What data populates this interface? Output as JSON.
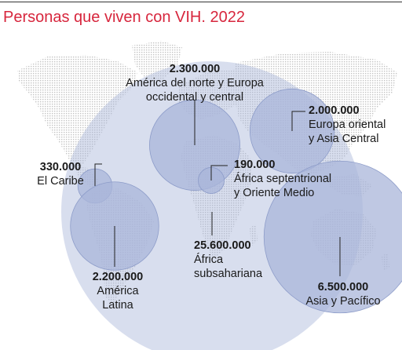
{
  "chart_data": {
    "type": "bubble-map",
    "title": "Personas que viven con VIH. 2022",
    "regions": [
      {
        "name": "América del norte y Europa occidental y central",
        "name_lines": [
          "América del norte y Europa",
          "occidental y central"
        ],
        "value": 2300000,
        "value_label": "2.300.000"
      },
      {
        "name": "Europa oriental y Asia Central",
        "name_lines": [
          "Europa oriental",
          "y Asia Central"
        ],
        "value": 2000000,
        "value_label": "2.000.000"
      },
      {
        "name": "El Caribe",
        "name_lines": [
          "El Caribe"
        ],
        "value": 330000,
        "value_label": "330.000"
      },
      {
        "name": "África septentrional y Oriente Medio",
        "name_lines": [
          "África septentrional",
          "y Oriente Medio"
        ],
        "value": 190000,
        "value_label": "190.000"
      },
      {
        "name": "África subsahariana",
        "name_lines": [
          "África",
          "subsahariana"
        ],
        "value": 25600000,
        "value_label": "25.600.000"
      },
      {
        "name": "América Latina",
        "name_lines": [
          "América",
          "Latina"
        ],
        "value": 2200000,
        "value_label": "2.200.000"
      },
      {
        "name": "Asia y Pacífico",
        "name_lines": [
          "Asia y Pacífico"
        ],
        "value": 6500000,
        "value_label": "6.500.000"
      }
    ]
  },
  "colors": {
    "title": "#d7263d",
    "bubble_fill": "#a9b6d9",
    "bubble_edge": "#8d9cc9",
    "map_dots": "#c9c9c9",
    "text": "#1a1a1a"
  }
}
